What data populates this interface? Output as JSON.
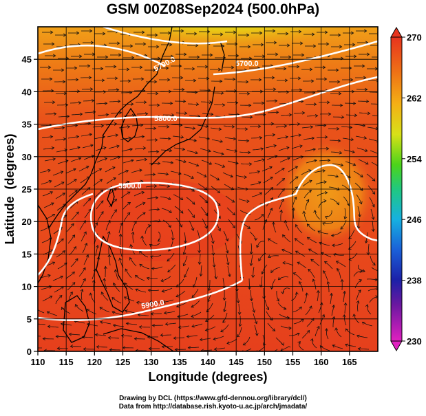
{
  "title": "GSM 00Z08Sep2024 (500.0hPa)",
  "map": {
    "xlabel": "Longitude (degrees)",
    "ylabel": "Latitude  (degrees)",
    "x_ticks": [
      "110",
      "115",
      "120",
      "125",
      "130",
      "135",
      "140",
      "145",
      "150",
      "155",
      "160",
      "165"
    ],
    "y_ticks": [
      "0",
      "5",
      "10",
      "15",
      "20",
      "25",
      "30",
      "35",
      "40",
      "45"
    ],
    "xlim": [
      110,
      170
    ],
    "ylim": [
      0,
      50
    ],
    "grid": true,
    "contour_labels": [
      "5700.0",
      "5700.0",
      "5800.0",
      "5900.0",
      "5900.0"
    ],
    "colorbar": {
      "ticks": [
        "270",
        "262",
        "254",
        "246",
        "238",
        "230"
      ],
      "range": [
        230,
        270
      ]
    },
    "colors": {
      "warm_red": "#e63c1e",
      "orange": "#f07818",
      "yellow_green": "#b8e01a",
      "green": "#2cd81a",
      "contour": "#ffffff",
      "coast": "#000000"
    }
  },
  "credits": {
    "line1": "Drawing by DCL (https://www.gfd-dennou.org/library/dcl/)",
    "line2": "Data from http://database.rish.kyoto-u.ac.jp/arch/jmadata/"
  }
}
